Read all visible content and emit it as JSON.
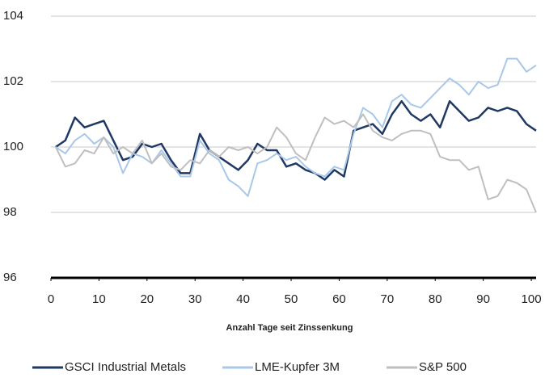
{
  "chart_data": {
    "type": "line",
    "x_label": "Anzahl Tage seit Zinssenkung",
    "x": [
      1,
      3,
      5,
      7,
      9,
      11,
      13,
      15,
      17,
      19,
      21,
      23,
      25,
      27,
      29,
      31,
      33,
      35,
      37,
      39,
      41,
      43,
      45,
      47,
      49,
      51,
      53,
      55,
      57,
      59,
      61,
      63,
      65,
      67,
      69,
      71,
      73,
      75,
      77,
      79,
      81,
      83,
      85,
      87,
      89,
      91,
      93,
      95,
      97,
      99,
      101
    ],
    "series": [
      {
        "name": "GSCI Industrial Metals",
        "color": "#1f3864",
        "width": 2.5,
        "values": [
          100,
          100.2,
          100.9,
          100.6,
          100.7,
          100.8,
          100.2,
          99.6,
          99.7,
          100.1,
          100.0,
          100.1,
          99.6,
          99.2,
          99.2,
          100.4,
          99.9,
          99.7,
          99.5,
          99.3,
          99.6,
          100.1,
          99.9,
          99.9,
          99.4,
          99.5,
          99.3,
          99.2,
          99.0,
          99.3,
          99.1,
          100.5,
          100.6,
          100.7,
          100.4,
          101.0,
          101.4,
          101.0,
          100.8,
          101.0,
          100.6,
          101.4,
          101.1,
          100.8,
          100.9,
          101.2,
          101.1,
          101.2,
          101.1,
          100.7,
          100.5
        ]
      },
      {
        "name": "LME-Kupfer 3M",
        "color": "#a9c8e8",
        "width": 2,
        "values": [
          100,
          99.8,
          100.2,
          100.4,
          100.1,
          100.3,
          100.0,
          99.2,
          99.8,
          99.7,
          99.5,
          99.9,
          99.5,
          99.1,
          99.1,
          100.2,
          99.8,
          99.6,
          99.0,
          98.8,
          98.5,
          99.5,
          99.6,
          99.8,
          99.6,
          99.7,
          99.4,
          99.2,
          99.1,
          99.4,
          99.3,
          100.4,
          101.2,
          101.0,
          100.6,
          101.4,
          101.6,
          101.3,
          101.2,
          101.5,
          101.8,
          102.1,
          101.9,
          101.6,
          102.0,
          101.8,
          101.9,
          102.7,
          102.7,
          102.3,
          102.5
        ]
      },
      {
        "name": "S&P 500",
        "color": "#bfbfbf",
        "width": 2,
        "values": [
          100,
          99.4,
          99.5,
          99.9,
          99.8,
          100.3,
          99.8,
          100.0,
          99.8,
          100.2,
          99.5,
          99.8,
          99.4,
          99.3,
          99.6,
          99.5,
          99.9,
          99.7,
          100.0,
          99.9,
          100.0,
          99.8,
          100.0,
          100.6,
          100.3,
          99.8,
          99.6,
          100.3,
          100.9,
          100.7,
          100.8,
          100.6,
          101.0,
          100.5,
          100.3,
          100.2,
          100.4,
          100.5,
          100.5,
          100.4,
          99.7,
          99.6,
          99.6,
          99.3,
          99.4,
          98.4,
          98.5,
          99.0,
          98.9,
          98.7,
          98.0
        ]
      }
    ],
    "xlim": [
      0,
      101
    ],
    "xticks": [
      0,
      10,
      20,
      30,
      40,
      50,
      60,
      70,
      80,
      90,
      100
    ],
    "ylim": [
      96,
      104
    ],
    "yticks": [
      96,
      98,
      100,
      102,
      104
    ],
    "grid": true
  }
}
